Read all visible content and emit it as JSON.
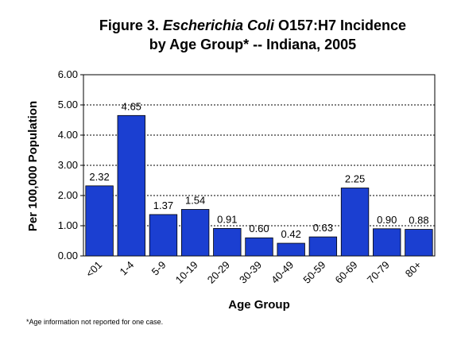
{
  "chart_data": {
    "type": "bar",
    "title_line1_prefix": "Figure 3. ",
    "title_line1_italic": "Escherichia Coli",
    "title_line1_suffix": " O157:H7 Incidence",
    "title_line2": "by Age Group* -- Indiana, 2005",
    "xlabel": "Age Group",
    "ylabel": "Per 100,000 Population",
    "categories": [
      "<01",
      "1-4",
      "5-9",
      "10-19",
      "20-29",
      "30-39",
      "40-49",
      "50-59",
      "60-69",
      "70-79",
      "80+"
    ],
    "values": [
      2.32,
      4.65,
      1.37,
      1.54,
      0.91,
      0.6,
      0.42,
      0.63,
      2.25,
      0.9,
      0.88
    ],
    "value_labels": [
      "2.32",
      "4.65",
      "1.37",
      "1.54",
      "0.91",
      "0.60",
      "0.42",
      "0.63",
      "2.25",
      "0.90",
      "0.88"
    ],
    "yticks": [
      "0.00",
      "1.00",
      "2.00",
      "3.00",
      "4.00",
      "5.00",
      "6.00"
    ],
    "ylim": [
      0,
      6
    ],
    "grid": true,
    "bar_color": "#1b3fd1",
    "footnote": "*Age information not reported for one case."
  }
}
